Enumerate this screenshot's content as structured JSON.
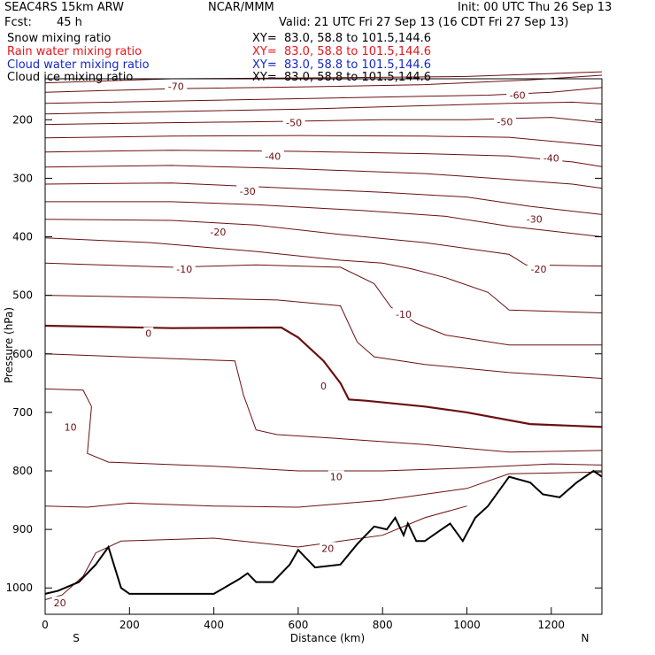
{
  "header": {
    "model": "SEAC4RS 15km ARW",
    "org": "NCAR/MMM",
    "init": "Init: 00 UTC Thu 26 Sep 13",
    "fcst_label": "Fcst:",
    "fcst_value": "45 h",
    "valid": "Valid: 21 UTC Fri 27 Sep 13 (16 CDT Fri 27 Sep 13)"
  },
  "fields": [
    {
      "name": "Snow mixing ratio",
      "xy": "XY=  83.0, 58.8 to 101.5,144.6",
      "color": "#000000"
    },
    {
      "name": "Rain water mixing ratio",
      "xy": "XY=  83.0, 58.8 to 101.5,144.6",
      "color": "#e8141c"
    },
    {
      "name": "Cloud water mixing ratio",
      "xy": "XY=  83.0, 58.8 to 101.5,144.6",
      "color": "#1428c8"
    },
    {
      "name": "Cloud ice mixing ratio",
      "xy": "XY=  83.0, 58.8 to 101.5,144.6",
      "color": "#000000"
    }
  ],
  "chart_data": {
    "type": "line",
    "description_kind": "vertical cross-section, temperature contours (°C) vs distance and pressure",
    "xlabel": "Distance (km)",
    "ylabel": "Pressure (hPa)",
    "x_ticks": [
      0,
      200,
      400,
      600,
      800,
      1000,
      1200
    ],
    "y_ticks": [
      200,
      300,
      400,
      500,
      600,
      700,
      800,
      900,
      1000
    ],
    "xlim": [
      0,
      1320
    ],
    "ylim": [
      1045,
      130
    ],
    "end_labels": {
      "left": "S",
      "right": "N"
    },
    "contour_color": "#6b0f12",
    "terrain_color": "#000000",
    "contour_labels": [
      {
        "text": "-70",
        "x": 310,
        "p": 143
      },
      {
        "text": "-60",
        "x": 1120,
        "p": 158
      },
      {
        "text": "-50",
        "x": 590,
        "p": 205
      },
      {
        "text": "-50",
        "x": 1090,
        "p": 203
      },
      {
        "text": "-40",
        "x": 540,
        "p": 262
      },
      {
        "text": "-40",
        "x": 1200,
        "p": 265
      },
      {
        "text": "-30",
        "x": 480,
        "p": 322
      },
      {
        "text": "-30",
        "x": 1160,
        "p": 370
      },
      {
        "text": "-20",
        "x": 410,
        "p": 392
      },
      {
        "text": "-20",
        "x": 1170,
        "p": 455
      },
      {
        "text": "-10",
        "x": 330,
        "p": 455
      },
      {
        "text": "-10",
        "x": 850,
        "p": 532
      },
      {
        "text": "0",
        "x": 245,
        "p": 565
      },
      {
        "text": "0",
        "x": 660,
        "p": 655
      },
      {
        "text": "10",
        "x": 60,
        "p": 725
      },
      {
        "text": "10",
        "x": 690,
        "p": 810
      },
      {
        "text": "20",
        "x": 670,
        "p": 932
      },
      {
        "text": "20",
        "x": 35,
        "p": 1025
      }
    ],
    "contours": [
      {
        "level": -80,
        "points": [
          [
            0,
            137
          ],
          [
            300,
            130
          ],
          [
            700,
            128
          ],
          [
            1000,
            126
          ],
          [
            1320,
            118
          ]
        ]
      },
      {
        "level": -70,
        "points": [
          [
            0,
            153
          ],
          [
            300,
            147
          ],
          [
            600,
            144
          ],
          [
            900,
            140
          ],
          [
            1150,
            132
          ],
          [
            1320,
            124
          ]
        ]
      },
      {
        "level": -60,
        "points": [
          [
            0,
            172
          ],
          [
            300,
            168
          ],
          [
            600,
            164
          ],
          [
            900,
            160
          ],
          [
            1050,
            158
          ],
          [
            1200,
            153
          ],
          [
            1320,
            145
          ]
        ]
      },
      {
        "level": -55,
        "points": [
          [
            0,
            190
          ],
          [
            300,
            186
          ],
          [
            600,
            182
          ],
          [
            900,
            176
          ],
          [
            1100,
            172
          ],
          [
            1250,
            170
          ],
          [
            1320,
            173
          ]
        ]
      },
      {
        "level": -50,
        "points": [
          [
            0,
            208
          ],
          [
            300,
            205
          ],
          [
            550,
            203
          ],
          [
            800,
            200
          ],
          [
            1000,
            200
          ],
          [
            1200,
            196
          ],
          [
            1320,
            205
          ]
        ]
      },
      {
        "level": -45,
        "points": [
          [
            0,
            231
          ],
          [
            300,
            228
          ],
          [
            600,
            227
          ],
          [
            900,
            228
          ],
          [
            1100,
            230
          ],
          [
            1250,
            240
          ],
          [
            1320,
            245
          ]
        ]
      },
      {
        "level": -40,
        "points": [
          [
            0,
            255
          ],
          [
            300,
            252
          ],
          [
            600,
            254
          ],
          [
            900,
            258
          ],
          [
            1100,
            262
          ],
          [
            1250,
            272
          ],
          [
            1320,
            280
          ]
        ]
      },
      {
        "level": -35,
        "points": [
          [
            0,
            281
          ],
          [
            300,
            278
          ],
          [
            600,
            284
          ],
          [
            900,
            292
          ],
          [
            1100,
            302
          ],
          [
            1250,
            310
          ],
          [
            1320,
            317
          ]
        ]
      },
      {
        "level": -30,
        "points": [
          [
            0,
            310
          ],
          [
            300,
            308
          ],
          [
            550,
            316
          ],
          [
            800,
            324
          ],
          [
            1000,
            332
          ],
          [
            1150,
            348
          ],
          [
            1320,
            362
          ]
        ]
      },
      {
        "level": -25,
        "points": [
          [
            0,
            340
          ],
          [
            300,
            340
          ],
          [
            500,
            345
          ],
          [
            750,
            355
          ],
          [
            950,
            365
          ],
          [
            1100,
            382
          ],
          [
            1320,
            400
          ]
        ]
      },
      {
        "level": -20,
        "points": [
          [
            0,
            370
          ],
          [
            300,
            372
          ],
          [
            500,
            380
          ],
          [
            700,
            396
          ],
          [
            900,
            410
          ],
          [
            1100,
            430
          ],
          [
            1140,
            448
          ],
          [
            1320,
            450
          ]
        ]
      },
      {
        "level": -15,
        "points": [
          [
            0,
            402
          ],
          [
            250,
            410
          ],
          [
            500,
            425
          ],
          [
            700,
            440
          ],
          [
            800,
            445
          ],
          [
            870,
            455
          ],
          [
            950,
            470
          ],
          [
            1050,
            495
          ],
          [
            1100,
            525
          ],
          [
            1320,
            530
          ]
        ]
      },
      {
        "level": -10,
        "points": [
          [
            0,
            445
          ],
          [
            300,
            452
          ],
          [
            500,
            448
          ],
          [
            700,
            452
          ],
          [
            780,
            480
          ],
          [
            820,
            520
          ],
          [
            880,
            548
          ],
          [
            950,
            568
          ],
          [
            1100,
            585
          ],
          [
            1320,
            585
          ]
        ]
      },
      {
        "level": -5,
        "points": [
          [
            0,
            500
          ],
          [
            300,
            504
          ],
          [
            550,
            508
          ],
          [
            700,
            518
          ],
          [
            740,
            580
          ],
          [
            780,
            605
          ],
          [
            900,
            618
          ],
          [
            1100,
            632
          ],
          [
            1320,
            642
          ]
        ]
      },
      {
        "level": 0,
        "points": [
          [
            0,
            552
          ],
          [
            300,
            556
          ],
          [
            560,
            555
          ],
          [
            600,
            572
          ],
          [
            660,
            612
          ],
          [
            700,
            650
          ],
          [
            720,
            678
          ],
          [
            760,
            680
          ],
          [
            900,
            690
          ],
          [
            1000,
            700
          ],
          [
            1150,
            720
          ],
          [
            1320,
            725
          ]
        ]
      },
      {
        "level": 5,
        "points": [
          [
            0,
            600
          ],
          [
            300,
            608
          ],
          [
            450,
            612
          ],
          [
            470,
            670
          ],
          [
            500,
            730
          ],
          [
            550,
            738
          ],
          [
            700,
            745
          ],
          [
            900,
            755
          ],
          [
            1100,
            768
          ],
          [
            1320,
            765
          ]
        ]
      },
      {
        "level": 10,
        "points": [
          [
            0,
            660
          ],
          [
            90,
            662
          ],
          [
            110,
            690
          ],
          [
            100,
            770
          ],
          [
            150,
            785
          ],
          [
            400,
            792
          ],
          [
            600,
            800
          ],
          [
            800,
            800
          ],
          [
            1000,
            795
          ],
          [
            1200,
            788
          ],
          [
            1320,
            790
          ]
        ]
      },
      {
        "level": 15,
        "points": [
          [
            0,
            860
          ],
          [
            100,
            862
          ],
          [
            200,
            855
          ],
          [
            400,
            860
          ],
          [
            600,
            862
          ],
          [
            800,
            850
          ],
          [
            1000,
            830
          ],
          [
            1100,
            805
          ],
          [
            1320,
            802
          ]
        ]
      },
      {
        "level": 20,
        "points": [
          [
            0,
            1020
          ],
          [
            40,
            1012
          ],
          [
            90,
            980
          ],
          [
            120,
            940
          ],
          [
            180,
            920
          ],
          [
            400,
            915
          ],
          [
            600,
            930
          ],
          [
            800,
            910
          ],
          [
            900,
            880
          ],
          [
            1000,
            860
          ]
        ]
      }
    ],
    "terrain": [
      [
        0,
        1010
      ],
      [
        30,
        1005
      ],
      [
        80,
        990
      ],
      [
        120,
        960
      ],
      [
        150,
        930
      ],
      [
        180,
        1000
      ],
      [
        200,
        1010
      ],
      [
        400,
        1010
      ],
      [
        460,
        985
      ],
      [
        480,
        975
      ],
      [
        500,
        990
      ],
      [
        540,
        990
      ],
      [
        580,
        960
      ],
      [
        600,
        935
      ],
      [
        640,
        965
      ],
      [
        700,
        960
      ],
      [
        740,
        925
      ],
      [
        780,
        895
      ],
      [
        810,
        900
      ],
      [
        830,
        880
      ],
      [
        850,
        910
      ],
      [
        860,
        890
      ],
      [
        880,
        920
      ],
      [
        900,
        920
      ],
      [
        940,
        900
      ],
      [
        960,
        890
      ],
      [
        990,
        920
      ],
      [
        1020,
        880
      ],
      [
        1050,
        860
      ],
      [
        1100,
        810
      ],
      [
        1150,
        820
      ],
      [
        1180,
        840
      ],
      [
        1220,
        845
      ],
      [
        1260,
        820
      ],
      [
        1300,
        800
      ],
      [
        1320,
        810
      ]
    ]
  }
}
